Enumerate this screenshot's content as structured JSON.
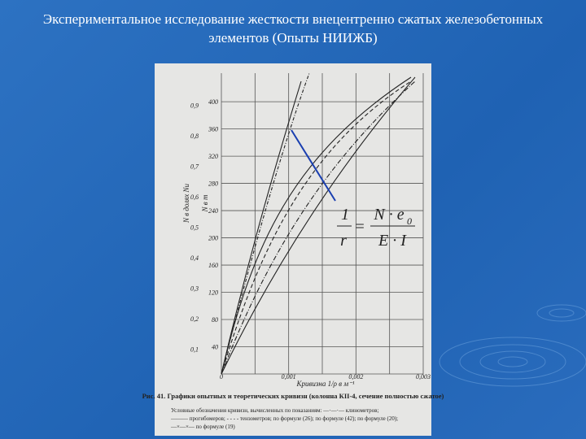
{
  "title": "Экспериментальное исследование жесткости внецентренно сжатых железобетонных элементов (Опыты НИИЖБ)",
  "figure": {
    "y_label_ratio": "N в долях Nu",
    "y_label_force": "N в т",
    "ratio_ticks": [
      "0,1",
      "0,2",
      "0,3",
      "0,4",
      "0,5",
      "0,6",
      "0,7",
      "0,8",
      "0,9"
    ],
    "force_ticks": [
      "40",
      "80",
      "120",
      "160",
      "200",
      "240",
      "280",
      "320",
      "360",
      "400"
    ],
    "x_ticks": [
      "0",
      "0,001",
      "0,002",
      "0,003"
    ],
    "x_label": "Кривизна 1/ρ в м⁻¹",
    "caption": "Рис. 41. Графики опытных и теоретических кривизн (колонна КII-4, сечение полностью сжатое)",
    "legend": [
      "Условные обозначения кривизн, вычисленных по показаниям: —·—·— клинометров;",
      "——— прогибомеров; - - - - тензометров; по формуле (26); по формуле (42); по формуле (20);",
      "—×—×— по формуле (19)"
    ]
  },
  "formula": {
    "lhs_num": "1",
    "lhs_den": "r",
    "equals": "=",
    "rhs_num": "N · e",
    "rhs_sub": "0",
    "rhs_den": "E · I"
  }
}
